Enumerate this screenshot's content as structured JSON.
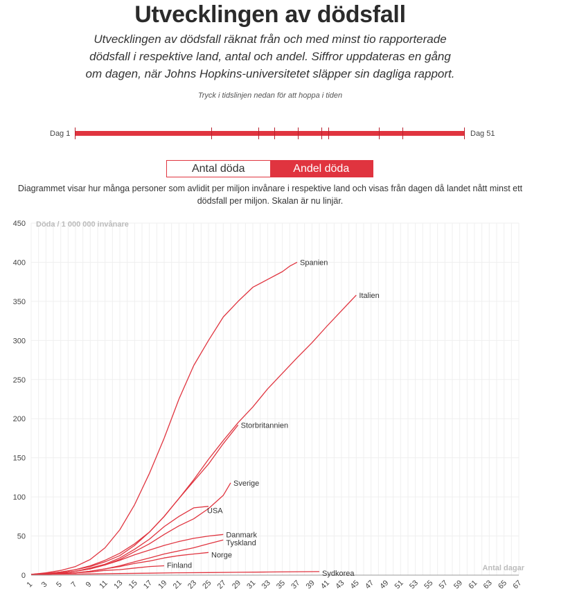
{
  "header": {
    "title": "Utvecklingen av dödsfall",
    "subtitle": "Utvecklingen av dödsfall räknat från och med minst tio rapporterade dödsfall i respektive land, antal och andel. Siffror uppdateras en gång om dagen, när Johns Hopkins-universitetet släpper sin dagliga rapport.",
    "hint": "Tryck i tidslinjen nedan för att hoppa i tiden"
  },
  "timeline": {
    "start_label": "Dag 1",
    "end_label": "Dag 51",
    "color": "#e0343f"
  },
  "toggle": {
    "option_1": "Antal döda",
    "option_2": "Andel döda",
    "selected": "Andel döda"
  },
  "description": "Diagrammet visar hur många personer som avlidit per miljon invånare i respektive land och visas från dagen då landet nått minst ett dödsfall per miljon. Skalan är nu linjär.",
  "chart_data": {
    "type": "line",
    "ylabel": "Döda / 1 000 000 invånare",
    "xlabel": "Antal dagar",
    "xlim": [
      1,
      67
    ],
    "ylim": [
      0,
      450
    ],
    "yticks": [
      0,
      50,
      100,
      150,
      200,
      250,
      300,
      350,
      400,
      450
    ],
    "xticks": [
      1,
      3,
      5,
      7,
      9,
      11,
      13,
      15,
      17,
      19,
      21,
      23,
      25,
      27,
      29,
      31,
      33,
      35,
      37,
      39,
      41,
      43,
      45,
      47,
      49,
      51,
      53,
      55,
      57,
      59,
      61,
      63,
      65,
      67
    ],
    "grid": true,
    "line_color": "#e0343f",
    "series": [
      {
        "name": "Spanien",
        "x": [
          1,
          3,
          5,
          7,
          9,
          11,
          13,
          15,
          17,
          19,
          21,
          23,
          25,
          27,
          29,
          31,
          33,
          35,
          36,
          37
        ],
        "y": [
          1,
          3,
          6,
          11,
          20,
          35,
          58,
          90,
          130,
          175,
          225,
          268,
          300,
          330,
          350,
          368,
          378,
          388,
          395,
          400
        ]
      },
      {
        "name": "Italien",
        "x": [
          1,
          3,
          5,
          7,
          9,
          11,
          13,
          15,
          17,
          19,
          21,
          23,
          25,
          27,
          29,
          31,
          33,
          35,
          37,
          39,
          41,
          43,
          45
        ],
        "y": [
          1,
          2,
          4,
          7,
          12,
          19,
          28,
          40,
          55,
          75,
          98,
          122,
          148,
          172,
          195,
          215,
          238,
          258,
          278,
          297,
          318,
          338,
          358
        ]
      },
      {
        "name": "Storbritannien",
        "x": [
          1,
          3,
          5,
          7,
          9,
          11,
          13,
          15,
          17,
          19,
          21,
          23,
          25,
          27,
          29
        ],
        "y": [
          1,
          2,
          4,
          7,
          11,
          17,
          25,
          38,
          55,
          75,
          98,
          120,
          142,
          168,
          192
        ]
      },
      {
        "name": "Sverige",
        "x": [
          1,
          3,
          5,
          7,
          9,
          11,
          13,
          15,
          17,
          19,
          21,
          23,
          25,
          27,
          28
        ],
        "y": [
          1,
          2,
          3,
          5,
          8,
          13,
          20,
          30,
          40,
          52,
          63,
          72,
          85,
          102,
          118
        ]
      },
      {
        "name": "USA",
        "x": [
          1,
          3,
          5,
          7,
          9,
          11,
          13,
          15,
          17,
          19,
          21,
          23,
          25
        ],
        "y": [
          1,
          2,
          3,
          5,
          9,
          14,
          22,
          33,
          46,
          62,
          75,
          86,
          88
        ]
      },
      {
        "name": "Danmark",
        "x": [
          1,
          3,
          5,
          7,
          9,
          11,
          13,
          15,
          17,
          19,
          21,
          23,
          25,
          27
        ],
        "y": [
          1,
          2,
          3,
          5,
          8,
          13,
          19,
          26,
          32,
          38,
          43,
          47,
          50,
          52
        ]
      },
      {
        "name": "Tyskland",
        "x": [
          1,
          3,
          5,
          7,
          9,
          11,
          13,
          15,
          17,
          19,
          21,
          23,
          25,
          27
        ],
        "y": [
          1,
          1,
          2,
          3,
          5,
          8,
          12,
          17,
          22,
          27,
          31,
          35,
          40,
          45
        ]
      },
      {
        "name": "Norge",
        "x": [
          1,
          3,
          5,
          7,
          9,
          11,
          13,
          15,
          17,
          19,
          21,
          23,
          25
        ],
        "y": [
          1,
          1,
          2,
          3,
          5,
          8,
          11,
          15,
          18,
          22,
          25,
          27,
          29
        ]
      },
      {
        "name": "Finland",
        "x": [
          1,
          3,
          5,
          7,
          9,
          11,
          13,
          15,
          17,
          19
        ],
        "y": [
          1,
          1,
          2,
          3,
          4,
          6,
          7,
          9,
          11,
          12
        ]
      },
      {
        "name": "Sydkorea",
        "x": [
          1,
          5,
          9,
          13,
          17,
          21,
          25,
          29,
          33,
          37,
          40
        ],
        "y": [
          1,
          1.2,
          1.5,
          2,
          2.5,
          3,
          3.3,
          3.6,
          4,
          4.3,
          4.5
        ]
      }
    ]
  }
}
